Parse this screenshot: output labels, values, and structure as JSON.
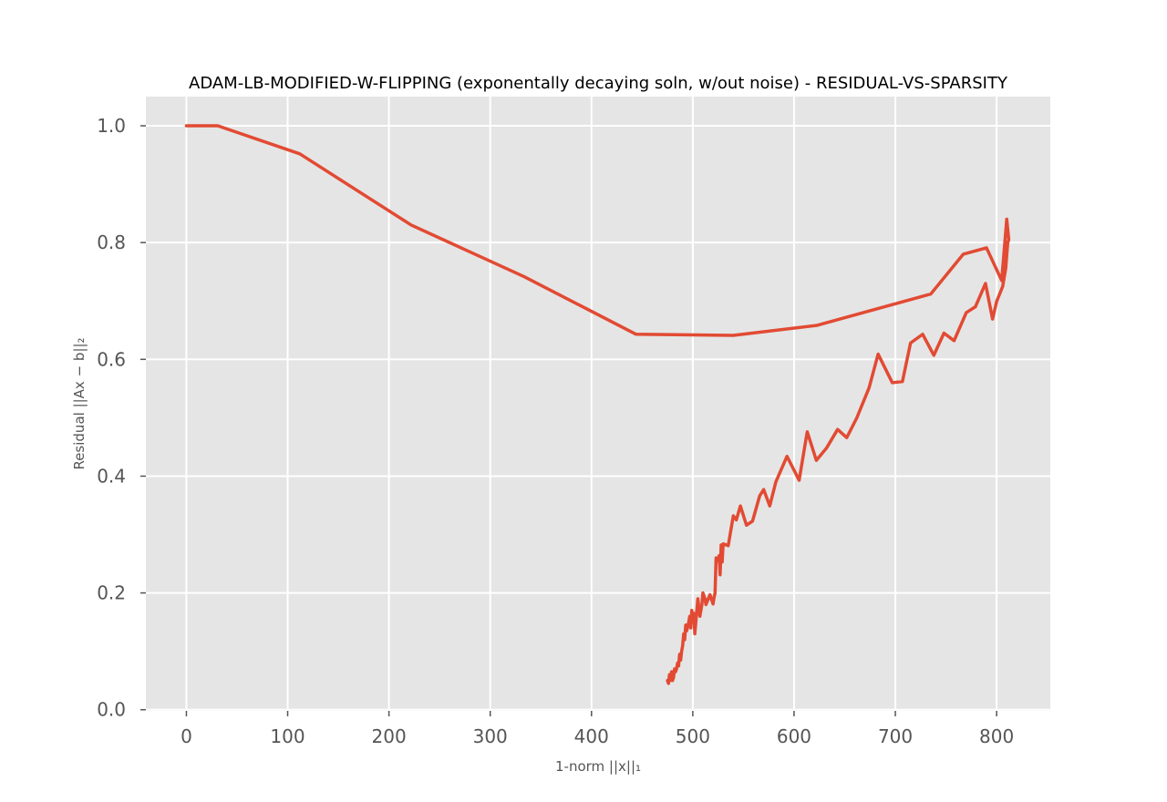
{
  "chart_data": {
    "type": "line",
    "title": "ADAM-LB-MODIFIED-W-FLIPPING (exponentally decaying soln, w/out noise) - RESIDUAL-VS-SPARSITY",
    "xlabel": "1-norm ||x||₁",
    "ylabel": "Residual ||Ax − b||₂",
    "xlim": [
      -40,
      853
    ],
    "ylim": [
      -0.002,
      1.05
    ],
    "xticks": [
      0,
      100,
      200,
      300,
      400,
      500,
      600,
      700,
      800
    ],
    "xtick_labels": [
      "0",
      "100",
      "200",
      "300",
      "400",
      "500",
      "600",
      "700",
      "800"
    ],
    "yticks": [
      0.0,
      0.2,
      0.4,
      0.6,
      0.8,
      1.0
    ],
    "ytick_labels": [
      "0.0",
      "0.2",
      "0.4",
      "0.6",
      "0.8",
      "1.0"
    ],
    "grid": true,
    "background": "#e5e5e5",
    "line_color": "#e24a33",
    "series": [
      {
        "x": [
          0,
          31,
          112,
          222,
          333,
          444,
          540,
          622,
          735,
          767,
          790,
          805,
          810,
          812,
          811,
          809,
          806,
          800,
          796,
          789,
          779,
          770,
          758,
          748,
          738,
          727,
          715,
          707,
          697,
          683,
          674,
          662,
          652,
          643,
          632,
          622,
          613,
          605,
          593,
          582,
          576,
          570,
          566,
          559,
          553,
          547,
          543,
          540,
          535,
          530,
          529,
          528,
          527,
          526,
          525,
          523,
          522,
          521,
          520,
          517,
          513,
          512,
          510,
          509,
          507,
          505,
          502,
          501,
          500,
          499,
          498,
          497,
          496,
          494,
          493,
          492,
          491,
          490,
          489,
          488,
          487,
          486,
          485,
          484,
          483,
          482,
          481,
          480,
          479,
          478,
          477,
          476,
          475
        ],
        "y": [
          1.0,
          1.0,
          0.952,
          0.83,
          0.742,
          0.643,
          0.641,
          0.658,
          0.712,
          0.78,
          0.791,
          0.735,
          0.84,
          0.805,
          0.8,
          0.756,
          0.725,
          0.699,
          0.669,
          0.73,
          0.69,
          0.68,
          0.632,
          0.645,
          0.607,
          0.643,
          0.628,
          0.562,
          0.56,
          0.609,
          0.551,
          0.5,
          0.466,
          0.48,
          0.448,
          0.427,
          0.476,
          0.393,
          0.434,
          0.39,
          0.349,
          0.377,
          0.366,
          0.323,
          0.316,
          0.349,
          0.325,
          0.332,
          0.281,
          0.284,
          0.253,
          0.282,
          0.231,
          0.264,
          0.255,
          0.26,
          0.2,
          0.192,
          0.181,
          0.197,
          0.18,
          0.19,
          0.2,
          0.18,
          0.16,
          0.19,
          0.13,
          0.165,
          0.155,
          0.17,
          0.14,
          0.16,
          0.15,
          0.135,
          0.145,
          0.12,
          0.13,
          0.11,
          0.1,
          0.085,
          0.095,
          0.075,
          0.08,
          0.07,
          0.065,
          0.07,
          0.055,
          0.05,
          0.065,
          0.05,
          0.06,
          0.045,
          0.05
        ]
      }
    ]
  }
}
